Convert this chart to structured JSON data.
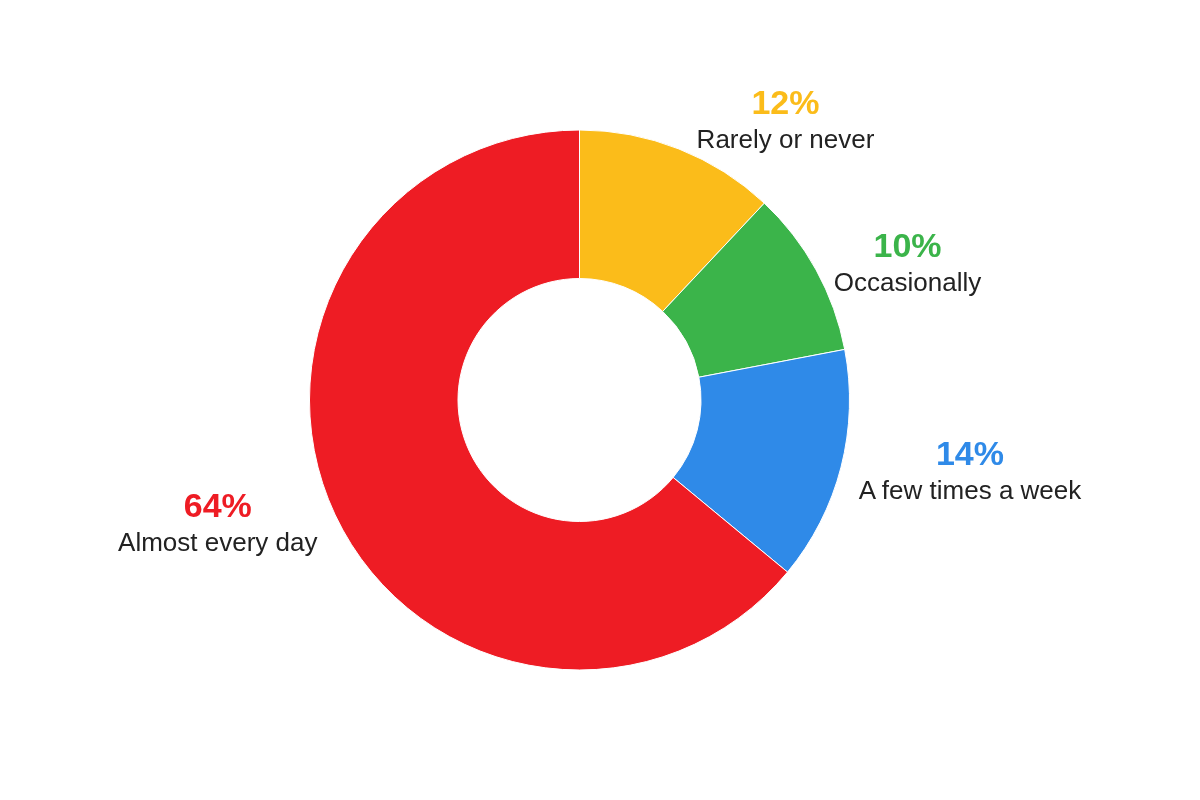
{
  "chart_data": {
    "type": "donut",
    "categories": [
      "Rarely or never",
      "Occasionally",
      "A few times a week",
      "Almost every day"
    ],
    "values": [
      12,
      10,
      14,
      64
    ],
    "value_labels": [
      "12%",
      "10%",
      "14%",
      "64%"
    ],
    "colors": [
      "#fbbc1a",
      "#3bb44a",
      "#2f8ae8",
      "#ee1c24"
    ],
    "legend": false
  }
}
